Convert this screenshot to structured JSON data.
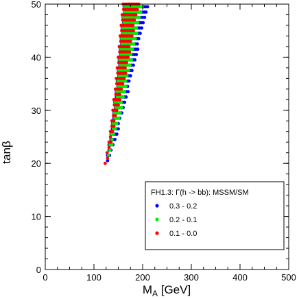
{
  "chart_data": {
    "type": "scatter",
    "xlabel_main": "M",
    "xlabel_sub": "A",
    "xlabel_rest": " [GeV]",
    "ylabel": "tanβ",
    "xlim": [
      0,
      500
    ],
    "ylim": [
      0,
      50
    ],
    "xticks": [
      "0",
      "100",
      "200",
      "300",
      "400",
      "500"
    ],
    "yticks": [
      "0",
      "10",
      "20",
      "30",
      "40",
      "50"
    ],
    "grid": false,
    "legend_position": "bottom-right",
    "legend_title": "FH1.3: Γ(h -> bb): MSSM/SM",
    "series": [
      {
        "name": "0.3 - 0.2",
        "color": "#0000ff",
        "band": [
          {
            "tanb": 20.5,
            "lo": 126,
            "hi": 129
          },
          {
            "tanb": 21.5,
            "lo": 128,
            "hi": 132
          },
          {
            "tanb": 22.5,
            "lo": 129,
            "hi": 136
          },
          {
            "tanb": 23.5,
            "lo": 131,
            "hi": 140
          },
          {
            "tanb": 24.5,
            "lo": 133,
            "hi": 143
          },
          {
            "tanb": 25.5,
            "lo": 135,
            "hi": 147
          },
          {
            "tanb": 26.5,
            "lo": 136,
            "hi": 150
          },
          {
            "tanb": 27.5,
            "lo": 138,
            "hi": 153
          },
          {
            "tanb": 28.5,
            "lo": 139,
            "hi": 156
          },
          {
            "tanb": 29.5,
            "lo": 141,
            "hi": 159
          },
          {
            "tanb": 30.5,
            "lo": 142,
            "hi": 162
          },
          {
            "tanb": 31.5,
            "lo": 143,
            "hi": 165
          },
          {
            "tanb": 32.5,
            "lo": 144,
            "hi": 167
          },
          {
            "tanb": 33.5,
            "lo": 146,
            "hi": 170
          },
          {
            "tanb": 34.5,
            "lo": 147,
            "hi": 172
          },
          {
            "tanb": 35.5,
            "lo": 148,
            "hi": 175
          },
          {
            "tanb": 36.5,
            "lo": 149,
            "hi": 177
          },
          {
            "tanb": 37.5,
            "lo": 150,
            "hi": 180
          },
          {
            "tanb": 38.5,
            "lo": 151,
            "hi": 182
          },
          {
            "tanb": 39.5,
            "lo": 152,
            "hi": 185
          },
          {
            "tanb": 40.5,
            "lo": 153,
            "hi": 187
          },
          {
            "tanb": 41.5,
            "lo": 154,
            "hi": 190
          },
          {
            "tanb": 42.5,
            "lo": 155,
            "hi": 192
          },
          {
            "tanb": 43.5,
            "lo": 156,
            "hi": 195
          },
          {
            "tanb": 44.5,
            "lo": 157,
            "hi": 197
          },
          {
            "tanb": 45.5,
            "lo": 158,
            "hi": 200
          },
          {
            "tanb": 46.5,
            "lo": 159,
            "hi": 203
          },
          {
            "tanb": 47.5,
            "lo": 160,
            "hi": 206
          },
          {
            "tanb": 48.5,
            "lo": 161,
            "hi": 209
          },
          {
            "tanb": 49.5,
            "lo": 162,
            "hi": 212
          }
        ]
      },
      {
        "name": "0.2 - 0.1",
        "color": "#00ee00",
        "band": [
          {
            "tanb": 21.5,
            "lo": 130,
            "hi": 131
          },
          {
            "tanb": 22.5,
            "lo": 131,
            "hi": 134
          },
          {
            "tanb": 23.5,
            "lo": 133,
            "hi": 137
          },
          {
            "tanb": 24.5,
            "lo": 135,
            "hi": 140
          },
          {
            "tanb": 25.5,
            "lo": 136,
            "hi": 143
          },
          {
            "tanb": 26.5,
            "lo": 138,
            "hi": 146
          },
          {
            "tanb": 27.5,
            "lo": 139,
            "hi": 149
          },
          {
            "tanb": 28.5,
            "lo": 141,
            "hi": 151
          },
          {
            "tanb": 29.5,
            "lo": 142,
            "hi": 154
          },
          {
            "tanb": 30.5,
            "lo": 143,
            "hi": 157
          },
          {
            "tanb": 31.5,
            "lo": 144,
            "hi": 159
          },
          {
            "tanb": 32.5,
            "lo": 146,
            "hi": 161
          },
          {
            "tanb": 33.5,
            "lo": 147,
            "hi": 164
          },
          {
            "tanb": 34.5,
            "lo": 148,
            "hi": 166
          },
          {
            "tanb": 35.5,
            "lo": 149,
            "hi": 168
          },
          {
            "tanb": 36.5,
            "lo": 150,
            "hi": 170
          },
          {
            "tanb": 37.5,
            "lo": 151,
            "hi": 173
          },
          {
            "tanb": 38.5,
            "lo": 152,
            "hi": 175
          },
          {
            "tanb": 39.5,
            "lo": 153,
            "hi": 177
          },
          {
            "tanb": 40.5,
            "lo": 154,
            "hi": 179
          },
          {
            "tanb": 41.5,
            "lo": 155,
            "hi": 181
          },
          {
            "tanb": 42.5,
            "lo": 156,
            "hi": 184
          },
          {
            "tanb": 43.5,
            "lo": 157,
            "hi": 186
          },
          {
            "tanb": 44.5,
            "lo": 158,
            "hi": 188
          },
          {
            "tanb": 45.5,
            "lo": 159,
            "hi": 190
          },
          {
            "tanb": 46.5,
            "lo": 160,
            "hi": 193
          },
          {
            "tanb": 47.5,
            "lo": 161,
            "hi": 196
          },
          {
            "tanb": 48.5,
            "lo": 162,
            "hi": 199
          },
          {
            "tanb": 49.5,
            "lo": 163,
            "hi": 202
          }
        ]
      },
      {
        "name": "0.1 - 0.0",
        "color": "#ff0000",
        "band": [
          {
            "tanb": 20.0,
            "lo": 123,
            "hi": 126
          },
          {
            "tanb": 21.0,
            "lo": 126,
            "hi": 128
          },
          {
            "tanb": 22.0,
            "lo": 127,
            "hi": 130
          },
          {
            "tanb": 23.0,
            "lo": 129,
            "hi": 132
          },
          {
            "tanb": 24.0,
            "lo": 131,
            "hi": 135
          },
          {
            "tanb": 25.0,
            "lo": 132,
            "hi": 137
          },
          {
            "tanb": 26.0,
            "lo": 134,
            "hi": 139
          },
          {
            "tanb": 27.0,
            "lo": 135,
            "hi": 142
          },
          {
            "tanb": 28.0,
            "lo": 137,
            "hi": 144
          },
          {
            "tanb": 29.0,
            "lo": 138,
            "hi": 146
          },
          {
            "tanb": 30.0,
            "lo": 139,
            "hi": 149
          },
          {
            "tanb": 31.0,
            "lo": 140,
            "hi": 151
          },
          {
            "tanb": 32.0,
            "lo": 141,
            "hi": 153
          },
          {
            "tanb": 33.0,
            "lo": 143,
            "hi": 156
          },
          {
            "tanb": 34.0,
            "lo": 144,
            "hi": 158
          },
          {
            "tanb": 35.0,
            "lo": 145,
            "hi": 160
          },
          {
            "tanb": 36.0,
            "lo": 146,
            "hi": 162
          },
          {
            "tanb": 37.0,
            "lo": 147,
            "hi": 165
          },
          {
            "tanb": 38.0,
            "lo": 148,
            "hi": 167
          },
          {
            "tanb": 39.0,
            "lo": 149,
            "hi": 169
          },
          {
            "tanb": 40.0,
            "lo": 150,
            "hi": 171
          },
          {
            "tanb": 41.0,
            "lo": 151,
            "hi": 173
          },
          {
            "tanb": 42.0,
            "lo": 152,
            "hi": 175
          },
          {
            "tanb": 43.0,
            "lo": 153,
            "hi": 177
          },
          {
            "tanb": 44.0,
            "lo": 154,
            "hi": 179
          },
          {
            "tanb": 45.0,
            "lo": 155,
            "hi": 181
          },
          {
            "tanb": 46.0,
            "lo": 156,
            "hi": 183
          },
          {
            "tanb": 47.0,
            "lo": 157,
            "hi": 185
          },
          {
            "tanb": 48.0,
            "lo": 158,
            "hi": 188
          },
          {
            "tanb": 49.0,
            "lo": 159,
            "hi": 190
          },
          {
            "tanb": 50.0,
            "lo": 160,
            "hi": 192
          }
        ]
      }
    ]
  }
}
